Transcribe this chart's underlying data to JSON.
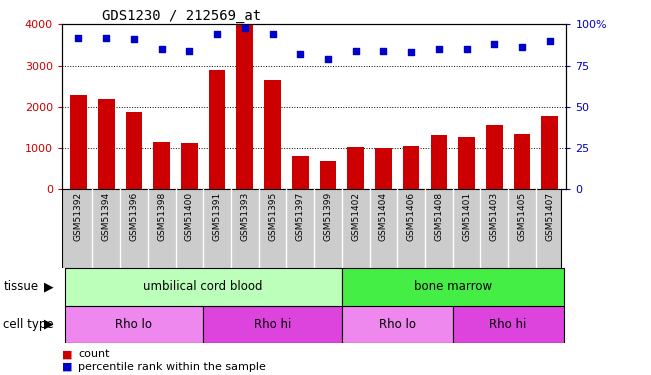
{
  "title": "GDS1230 / 212569_at",
  "samples": [
    "GSM51392",
    "GSM51394",
    "GSM51396",
    "GSM51398",
    "GSM51400",
    "GSM51391",
    "GSM51393",
    "GSM51395",
    "GSM51397",
    "GSM51399",
    "GSM51402",
    "GSM51404",
    "GSM51406",
    "GSM51408",
    "GSM51401",
    "GSM51403",
    "GSM51405",
    "GSM51407"
  ],
  "counts": [
    2300,
    2180,
    1880,
    1150,
    1130,
    2900,
    4000,
    2650,
    820,
    680,
    1020,
    1010,
    1060,
    1310,
    1280,
    1560,
    1350,
    1790
  ],
  "percentiles": [
    92,
    92,
    91,
    85,
    84,
    94,
    98,
    94,
    82,
    79,
    84,
    84,
    83,
    85,
    85,
    88,
    86,
    90
  ],
  "bar_color": "#cc0000",
  "dot_color": "#0000cc",
  "ylim_left": [
    0,
    4000
  ],
  "ylim_right": [
    0,
    100
  ],
  "yticks_left": [
    0,
    1000,
    2000,
    3000,
    4000
  ],
  "yticks_right": [
    0,
    25,
    50,
    75,
    100
  ],
  "tissue_labels": [
    {
      "text": "umbilical cord blood",
      "start": 0,
      "end": 10,
      "color": "#bbffbb"
    },
    {
      "text": "bone marrow",
      "start": 10,
      "end": 18,
      "color": "#44ee44"
    }
  ],
  "cell_type_labels": [
    {
      "text": "Rho lo",
      "start": 0,
      "end": 5,
      "color": "#ee88ee"
    },
    {
      "text": "Rho hi",
      "start": 5,
      "end": 10,
      "color": "#dd44dd"
    },
    {
      "text": "Rho lo",
      "start": 10,
      "end": 14,
      "color": "#ee88ee"
    },
    {
      "text": "Rho hi",
      "start": 14,
      "end": 18,
      "color": "#dd44dd"
    }
  ],
  "legend_items": [
    {
      "label": "count",
      "color": "#cc0000"
    },
    {
      "label": "percentile rank within the sample",
      "color": "#0000cc"
    }
  ],
  "tick_label_bg": "#cccccc"
}
